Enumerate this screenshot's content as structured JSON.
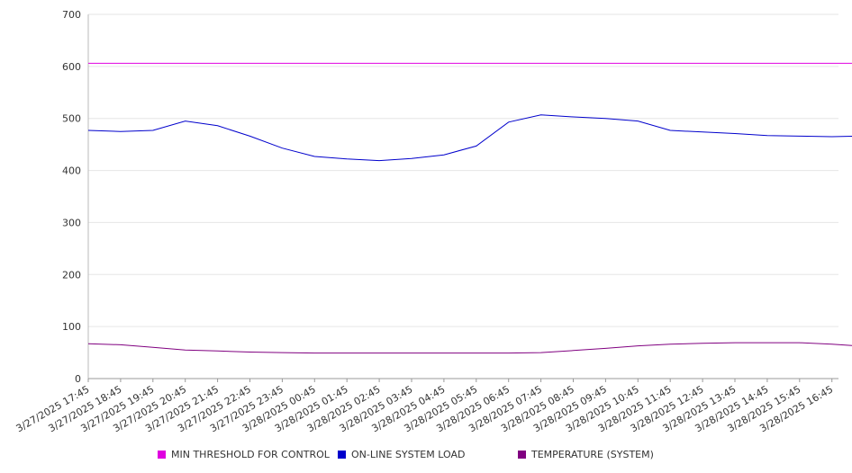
{
  "chart_data": {
    "type": "line",
    "ylim": [
      0,
      700
    ],
    "yticks": [
      0,
      100,
      200,
      300,
      400,
      500,
      600,
      700
    ],
    "grid": true,
    "legend_position": "bottom",
    "xticks": [
      "3/27/2025 17:45",
      "3/27/2025 18:45",
      "3/27/2025 19:45",
      "3/27/2025 20:45",
      "3/27/2025 21:45",
      "3/27/2025 22:45",
      "3/27/2025 23:45",
      "3/28/2025 00:45",
      "3/28/2025 01:45",
      "3/28/2025 02:45",
      "3/28/2025 03:45",
      "3/28/2025 04:45",
      "3/28/2025 05:45",
      "3/28/2025 06:45",
      "3/28/2025 07:45",
      "3/28/2025 08:45",
      "3/28/2025 09:45",
      "3/28/2025 10:45",
      "3/28/2025 11:45",
      "3/28/2025 12:45",
      "3/28/2025 13:45",
      "3/28/2025 14:45",
      "3/28/2025 15:45",
      "3/28/2025 16:45"
    ],
    "x": [
      "3/27/2025 17:45",
      "3/27/2025 18:45",
      "3/27/2025 19:45",
      "3/27/2025 20:45",
      "3/27/2025 21:45",
      "3/27/2025 22:45",
      "3/27/2025 23:45",
      "3/28/2025 00:45",
      "3/28/2025 01:45",
      "3/28/2025 02:45",
      "3/28/2025 03:45",
      "3/28/2025 04:45",
      "3/28/2025 05:45",
      "3/28/2025 06:45",
      "3/28/2025 07:45",
      "3/28/2025 08:45",
      "3/28/2025 09:45",
      "3/28/2025 10:45",
      "3/28/2025 11:45",
      "3/28/2025 12:45",
      "3/28/2025 13:45",
      "3/28/2025 14:45",
      "3/28/2025 15:45",
      "3/28/2025 16:45",
      "3/28/2025 17:30"
    ],
    "series": [
      {
        "name": "MIN THRESHOLD FOR CONTROL",
        "color": "#e000e0",
        "values": [
          606,
          606,
          606,
          606,
          606,
          606,
          606,
          606,
          606,
          606,
          606,
          606,
          606,
          606,
          606,
          606,
          606,
          606,
          606,
          606,
          606,
          606,
          606,
          606,
          606
        ]
      },
      {
        "name": "ON-LINE SYSTEM LOAD",
        "color": "#0000cc",
        "values": [
          477,
          475,
          477,
          495,
          486,
          466,
          443,
          427,
          422,
          419,
          423,
          430,
          447,
          493,
          507,
          503,
          500,
          495,
          477,
          474,
          471,
          467,
          466,
          465,
          466
        ]
      },
      {
        "name": "TEMPERATURE (SYSTEM)",
        "color": "#800080",
        "values": [
          67,
          65,
          60,
          55,
          53,
          51,
          50,
          49,
          49,
          49,
          49,
          49,
          49,
          49,
          50,
          54,
          58,
          63,
          66,
          68,
          69,
          69,
          69,
          66,
          63
        ]
      }
    ]
  }
}
